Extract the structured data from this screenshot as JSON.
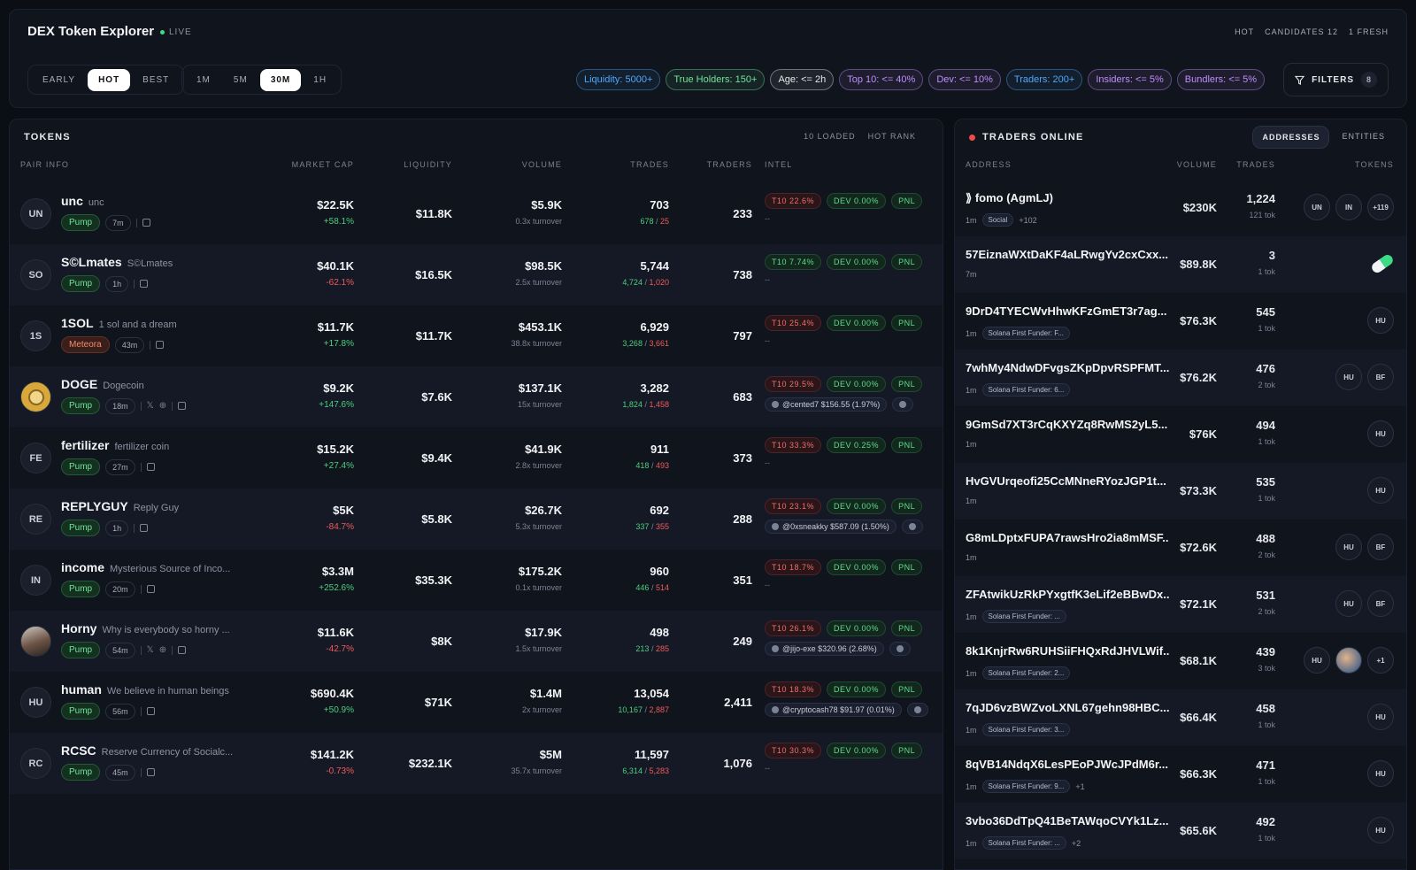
{
  "header": {
    "title": "DEX Token Explorer",
    "live": "LIVE",
    "stats": [
      "HOT",
      "CANDIDATES 12",
      "1 FRESH"
    ],
    "modes": [
      "EARLY",
      "HOT",
      "BEST"
    ],
    "active_mode": "HOT",
    "timeframes": [
      "1M",
      "5M",
      "30M",
      "1H"
    ],
    "active_timeframe": "30M",
    "filters_label": "FILTERS",
    "filters_count": "8",
    "chips": [
      {
        "label": "Liquidity: 5000+",
        "color": "#4aa8ff"
      },
      {
        "label": "True Holders: 150+",
        "color": "#6ee49b"
      },
      {
        "label": "Age: <= 2h",
        "color": "#e6e8ee"
      },
      {
        "label": "Top 10: <= 40%",
        "color": "#c08cff"
      },
      {
        "label": "Dev: <= 10%",
        "color": "#c08cff"
      },
      {
        "label": "Traders: 200+",
        "color": "#4aa8ff"
      },
      {
        "label": "Insiders: <= 5%",
        "color": "#c08cff"
      },
      {
        "label": "Bundlers: <= 5%",
        "color": "#c08cff"
      }
    ]
  },
  "tokens": {
    "title": "TOKENS",
    "loaded": "10 LOADED",
    "rank": "HOT RANK",
    "columns": [
      "PAIR INFO",
      "MARKET CAP",
      "LIQUIDITY",
      "VOLUME",
      "TRADES",
      "TRADERS",
      "INTEL"
    ],
    "rows": [
      {
        "avatar": "UN",
        "symbol": "unc",
        "name": "unc",
        "platform": "Pump",
        "age": "7m",
        "socials": false,
        "mc": "$22.5K",
        "mc_change": "+58.1%",
        "dir": "up",
        "liq": "$11.8K",
        "vol": "$5.9K",
        "turnover": "0.3x turnover",
        "trades": "703",
        "buys": "678",
        "sells": "25",
        "traders": "233",
        "t10": "T10 22.6%",
        "t10_color": "red",
        "dev": "DEV 0.00%",
        "pnl": "PNL",
        "intel_line": "--"
      },
      {
        "avatar": "SO",
        "symbol": "S©Lmates",
        "name": "S©Lmates",
        "platform": "Pump",
        "age": "1h",
        "socials": false,
        "mc": "$40.1K",
        "mc_change": "-62.1%",
        "dir": "down",
        "liq": "$16.5K",
        "vol": "$98.5K",
        "turnover": "2.5x turnover",
        "trades": "5,744",
        "buys": "4,724",
        "sells": "1,020",
        "traders": "738",
        "t10": "T10 7.74%",
        "t10_color": "green",
        "dev": "DEV 0.00%",
        "pnl": "PNL",
        "intel_line": "--"
      },
      {
        "avatar": "1S",
        "symbol": "1SOL",
        "name": "1 sol and a dream",
        "platform": "Meteora",
        "age": "43m",
        "socials": false,
        "mc": "$11.7K",
        "mc_change": "+17.8%",
        "dir": "up",
        "liq": "$11.7K",
        "vol": "$453.1K",
        "turnover": "38.8x turnover",
        "trades": "6,929",
        "buys": "3,268",
        "sells": "3,661",
        "traders": "797",
        "t10": "T10 25.4%",
        "t10_color": "red",
        "dev": "DEV 0.00%",
        "pnl": "PNL",
        "intel_line": "--"
      },
      {
        "avatar": "DOGE",
        "symbol": "DOGE",
        "name": "Dogecoin",
        "platform": "Pump",
        "age": "18m",
        "socials": true,
        "mc": "$9.2K",
        "mc_change": "+147.6%",
        "dir": "up",
        "liq": "$7.6K",
        "vol": "$137.1K",
        "turnover": "15x turnover",
        "trades": "3,282",
        "buys": "1,824",
        "sells": "1,458",
        "traders": "683",
        "t10": "T10 29.5%",
        "t10_color": "red",
        "dev": "DEV 0.00%",
        "pnl": "PNL",
        "intel_line": "@cented7 $156.55 (1.97%)"
      },
      {
        "avatar": "FE",
        "symbol": "fertilizer",
        "name": "fertilizer coin",
        "platform": "Pump",
        "age": "27m",
        "socials": false,
        "mc": "$15.2K",
        "mc_change": "+27.4%",
        "dir": "up",
        "liq": "$9.4K",
        "vol": "$41.9K",
        "turnover": "2.8x turnover",
        "trades": "911",
        "buys": "418",
        "sells": "493",
        "traders": "373",
        "t10": "T10 33.3%",
        "t10_color": "red",
        "dev": "DEV 0.25%",
        "pnl": "PNL",
        "intel_line": "--"
      },
      {
        "avatar": "RE",
        "symbol": "REPLYGUY",
        "name": "Reply Guy",
        "platform": "Pump",
        "age": "1h",
        "socials": false,
        "mc": "$5K",
        "mc_change": "-84.7%",
        "dir": "down",
        "liq": "$5.8K",
        "vol": "$26.7K",
        "turnover": "5.3x turnover",
        "trades": "692",
        "buys": "337",
        "sells": "355",
        "traders": "288",
        "t10": "T10 23.1%",
        "t10_color": "red",
        "dev": "DEV 0.00%",
        "pnl": "PNL",
        "intel_line": "@0xsneakky $587.09 (1.50%)"
      },
      {
        "avatar": "IN",
        "symbol": "income",
        "name": "Mysterious Source of Inco...",
        "platform": "Pump",
        "age": "20m",
        "socials": false,
        "mc": "$3.3M",
        "mc_change": "+252.6%",
        "dir": "up",
        "liq": "$35.3K",
        "vol": "$175.2K",
        "turnover": "0.1x turnover",
        "trades": "960",
        "buys": "446",
        "sells": "514",
        "traders": "351",
        "t10": "T10 18.7%",
        "t10_color": "red",
        "dev": "DEV 0.00%",
        "pnl": "PNL",
        "intel_line": "--"
      },
      {
        "avatar": "HO",
        "symbol": "Horny",
        "name": "Why is everybody so horny ...",
        "platform": "Pump",
        "age": "54m",
        "socials": true,
        "mc": "$11.6K",
        "mc_change": "-42.7%",
        "dir": "down",
        "liq": "$8K",
        "vol": "$17.9K",
        "turnover": "1.5x turnover",
        "trades": "498",
        "buys": "213",
        "sells": "285",
        "traders": "249",
        "t10": "T10 26.1%",
        "t10_color": "red",
        "dev": "DEV 0.00%",
        "pnl": "PNL",
        "intel_line": "@jijo-exe $320.96 (2.68%)"
      },
      {
        "avatar": "HU",
        "symbol": "human",
        "name": "We believe in human beings",
        "platform": "Pump",
        "age": "56m",
        "socials": false,
        "mc": "$690.4K",
        "mc_change": "+50.9%",
        "dir": "up",
        "liq": "$71K",
        "vol": "$1.4M",
        "turnover": "2x turnover",
        "trades": "13,054",
        "buys": "10,167",
        "sells": "2,887",
        "traders": "2,411",
        "t10": "T10 18.3%",
        "t10_color": "red",
        "dev": "DEV 0.00%",
        "pnl": "PNL",
        "intel_line": "@cryptocash78 $91.97 (0.01%)"
      },
      {
        "avatar": "RC",
        "symbol": "RCSC",
        "name": "Reserve Currency of Socialc...",
        "platform": "Pump",
        "age": "45m",
        "socials": false,
        "mc": "$141.2K",
        "mc_change": "-0.73%",
        "dir": "down",
        "liq": "$232.1K",
        "vol": "$5M",
        "turnover": "35.7x turnover",
        "trades": "11,597",
        "buys": "6,314",
        "sells": "5,283",
        "traders": "1,076",
        "t10": "T10 30.3%",
        "t10_color": "red",
        "dev": "DEV 0.00%",
        "pnl": "PNL",
        "intel_line": "--"
      }
    ]
  },
  "traders": {
    "title": "TRADERS ONLINE",
    "tabs": [
      "ADDRESSES",
      "ENTITIES"
    ],
    "active_tab": "ADDRESSES",
    "columns": [
      "ADDRESS",
      "VOLUME",
      "TRADES",
      "TOKENS"
    ],
    "rows": [
      {
        "address": "fomo (AgmLJ)",
        "time": "1m",
        "label": "Social",
        "extra": "+102",
        "volume": "$230K",
        "trades": "1,224",
        "tok": "121 tok",
        "badges": [
          "UN",
          "IN",
          "+119"
        ]
      },
      {
        "address": "57EiznaWXtDaKF4aLRwgYv2cxCxx...",
        "time": "7m",
        "label": "",
        "extra": "",
        "volume": "$89.8K",
        "trades": "3",
        "tok": "1 tok",
        "badges": [
          "pill"
        ]
      },
      {
        "address": "9DrD4TYECWvHhwKFzGmET3r7ag...",
        "time": "1m",
        "label": "Solana First Funder: F...",
        "extra": "",
        "volume": "$76.3K",
        "trades": "545",
        "tok": "1 tok",
        "badges": [
          "HU"
        ]
      },
      {
        "address": "7whMy4NdwDFvgsZKpDpvRSPFMT...",
        "time": "1m",
        "label": "Solana First Funder: 6...",
        "extra": "",
        "volume": "$76.2K",
        "trades": "476",
        "tok": "2 tok",
        "badges": [
          "HU",
          "BF"
        ]
      },
      {
        "address": "9GmSd7XT3rCqKXYZq8RwMS2yL5...",
        "time": "1m",
        "label": "",
        "extra": "",
        "volume": "$76K",
        "trades": "494",
        "tok": "1 tok",
        "badges": [
          "HU"
        ]
      },
      {
        "address": "HvGVUrqeofi25CcMNneRYozJGP1t...",
        "time": "1m",
        "label": "",
        "extra": "",
        "volume": "$73.3K",
        "trades": "535",
        "tok": "1 tok",
        "badges": [
          "HU"
        ]
      },
      {
        "address": "G8mLDptxFUPA7rawsHro2ia8mMSF...",
        "time": "1m",
        "label": "",
        "extra": "",
        "volume": "$72.6K",
        "trades": "488",
        "tok": "2 tok",
        "badges": [
          "HU",
          "BF"
        ]
      },
      {
        "address": "ZFAtwikUzRkPYxgtfK3eLif2eBBwDx...",
        "time": "1m",
        "label": "Solana First Funder: ...",
        "extra": "",
        "volume": "$72.1K",
        "trades": "531",
        "tok": "2 tok",
        "badges": [
          "HU",
          "BF"
        ]
      },
      {
        "address": "8k1KnjrRw6RUHSiiFHQxRdJHVLWif...",
        "time": "1m",
        "label": "Solana First Funder: 2...",
        "extra": "",
        "volume": "$68.1K",
        "trades": "439",
        "tok": "3 tok",
        "badges": [
          "HU",
          "img",
          "+1"
        ]
      },
      {
        "address": "7qJD6vzBWZvoLXNL67gehn98HBC...",
        "time": "1m",
        "label": "Solana First Funder: 3...",
        "extra": "",
        "volume": "$66.4K",
        "trades": "458",
        "tok": "1 tok",
        "badges": [
          "HU"
        ]
      },
      {
        "address": "8qVB14NdqX6LesPEoPJWcJPdM6r...",
        "time": "1m",
        "label": "Solana First Funder: 9...",
        "extra": "+1",
        "volume": "$66.3K",
        "trades": "471",
        "tok": "1 tok",
        "badges": [
          "HU"
        ]
      },
      {
        "address": "3vbo36DdTpQ41BeTAWqoCVYk1Lz...",
        "time": "1m",
        "label": "Solana First Funder: ...",
        "extra": "+2",
        "volume": "$65.6K",
        "trades": "492",
        "tok": "1 tok",
        "badges": [
          "HU"
        ]
      }
    ]
  }
}
